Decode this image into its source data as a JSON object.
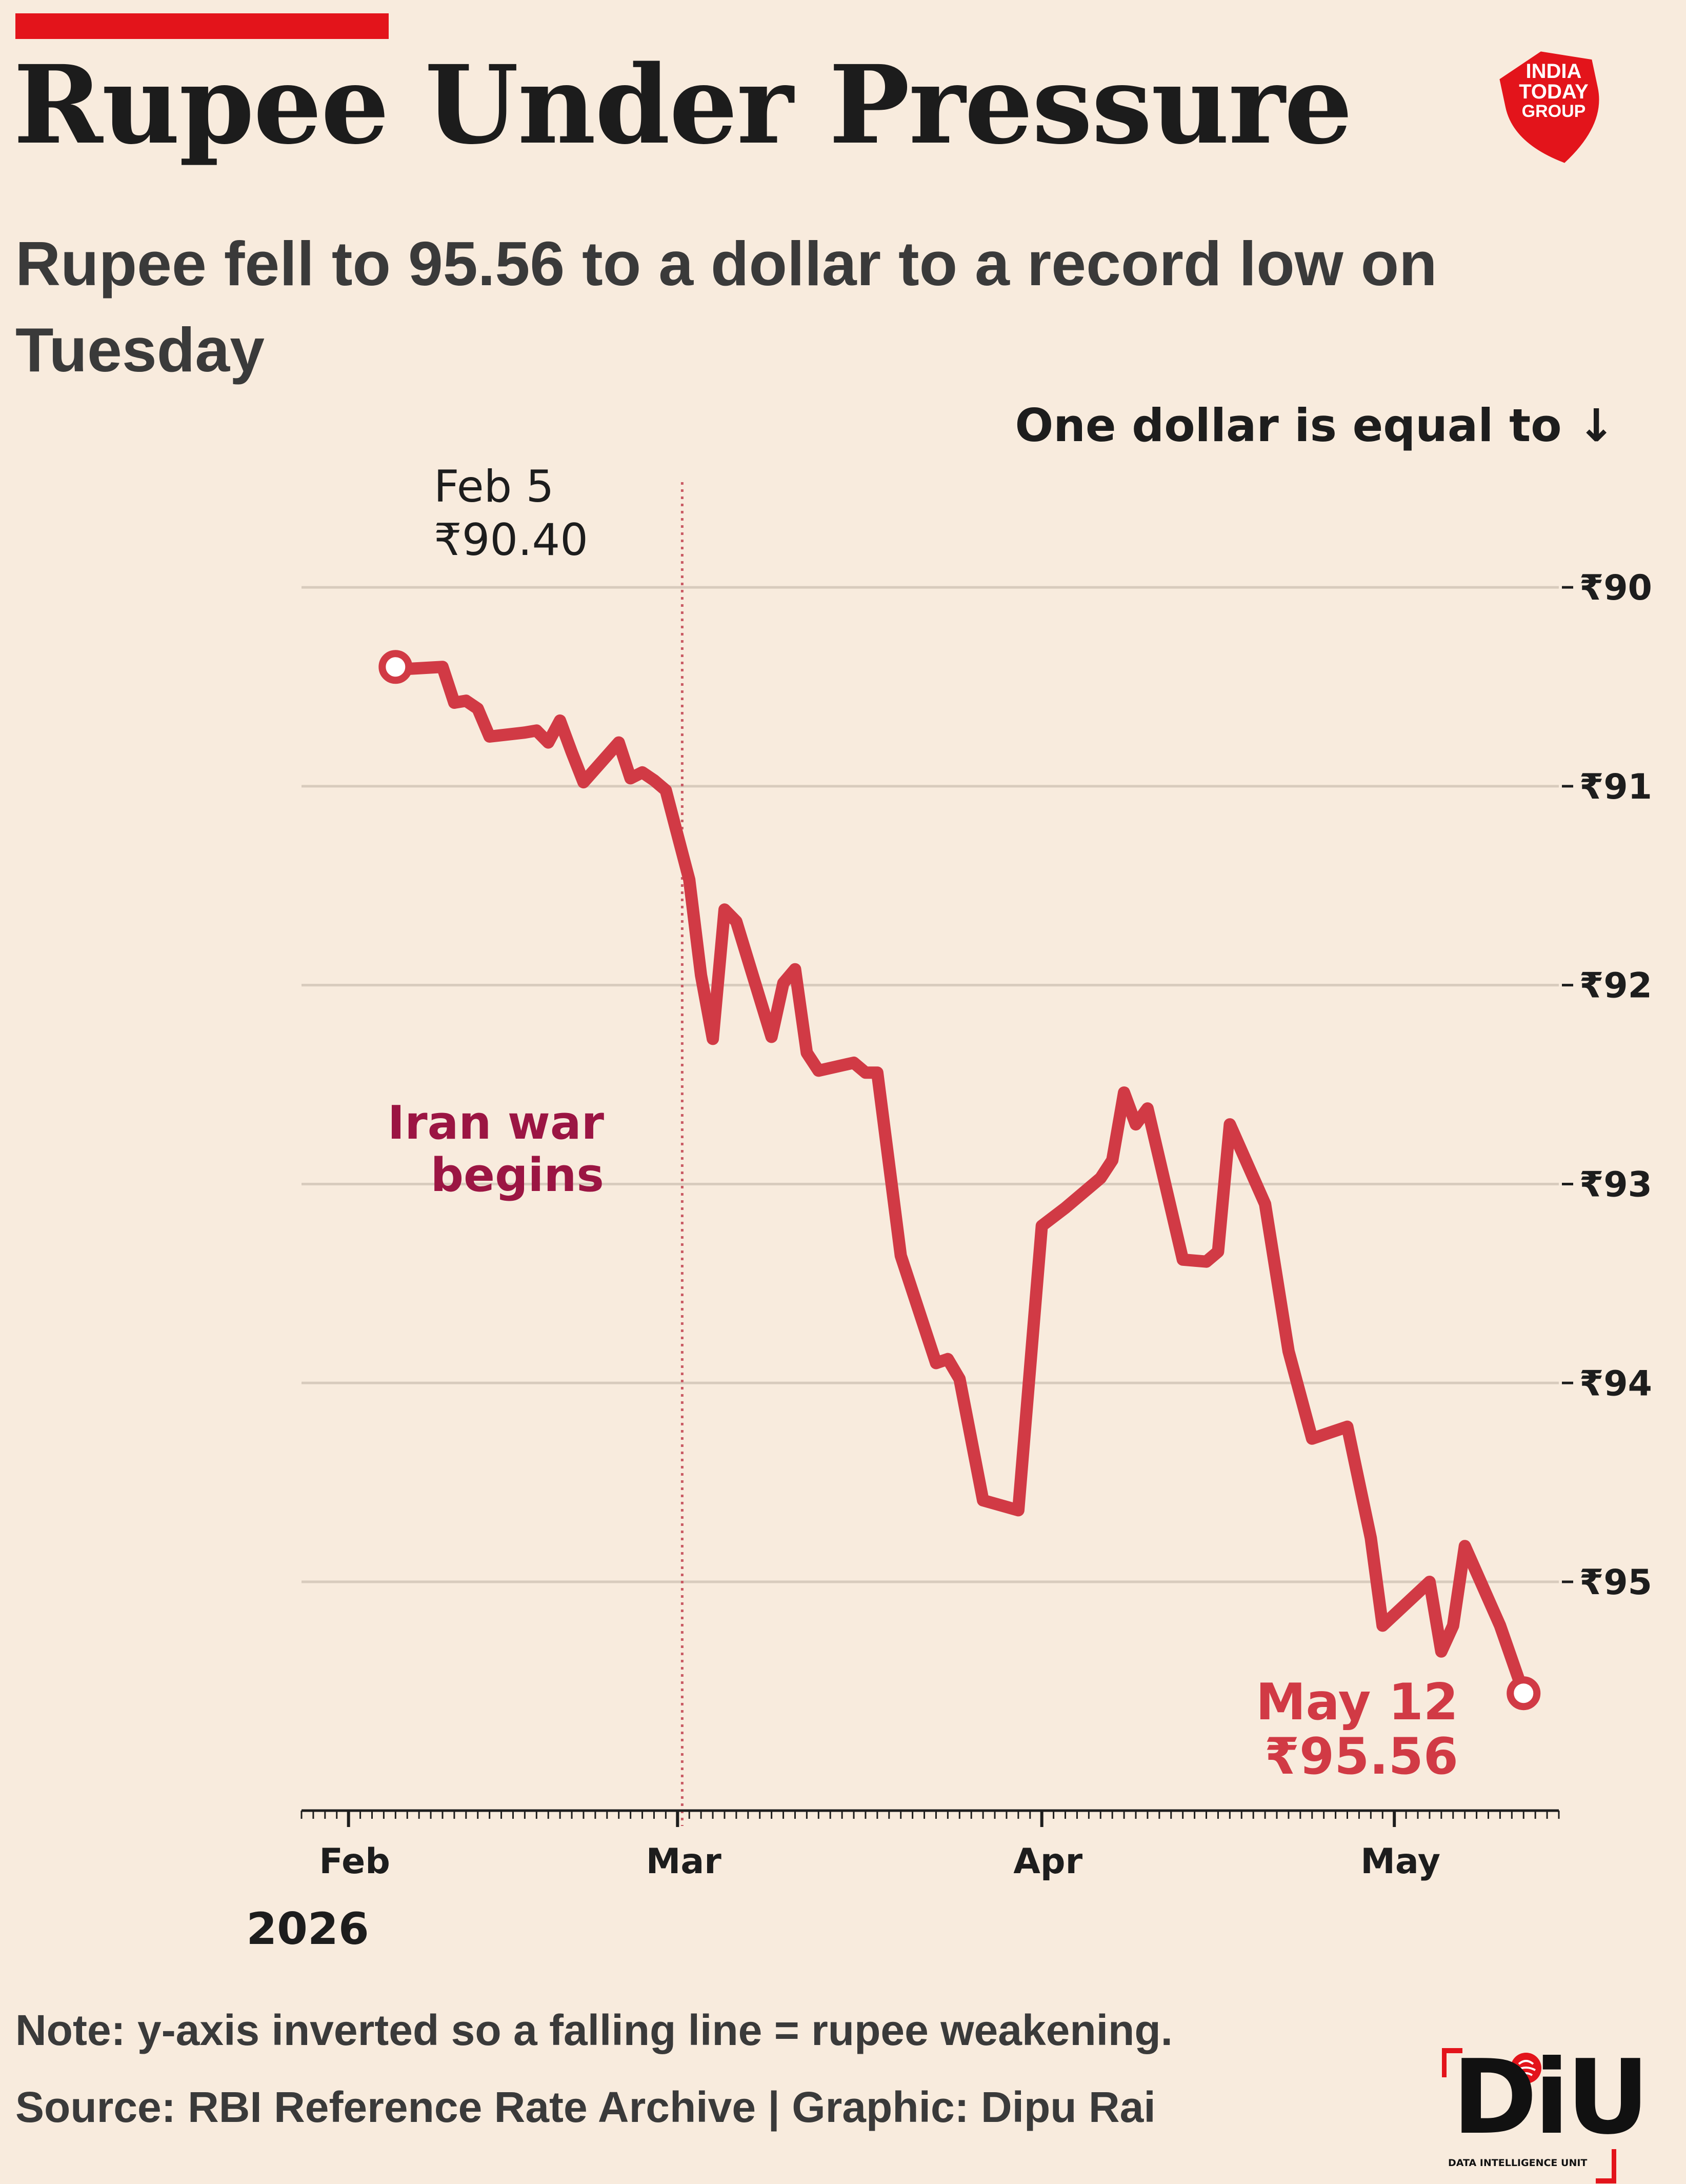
{
  "header": {
    "title": "Rupee Under Pressure",
    "subtitle": "Rupee fell to 95.56 to a dollar to a record low on Tuesday"
  },
  "logo": {
    "lines": [
      "INDIA",
      "TODAY",
      "GROUP"
    ],
    "icon": "india-today-group-logo",
    "color": "#e3141b"
  },
  "chart_data": {
    "type": "line",
    "xlabel": "",
    "ylabel": "One dollar is equal to ↓",
    "y_inverted": true,
    "y_ticks": [
      "₹90",
      "₹91",
      "₹92",
      "₹93",
      "₹94",
      "₹95"
    ],
    "y_tick_values": [
      90,
      91,
      92,
      93,
      94,
      95
    ],
    "ylim": [
      89.6,
      96.15
    ],
    "xlim": [
      "2026-01-28",
      "2026-05-15"
    ],
    "x_ticks": [
      "Feb",
      "Mar",
      "Apr",
      "May"
    ],
    "x_tick_dates": [
      "2026-02-01",
      "2026-03-01",
      "2026-04-01",
      "2026-05-01"
    ],
    "year_label": "2026",
    "grid": true,
    "line_color": "#d13a45",
    "series": [
      {
        "values": [
          [
            "2026-02-05",
            90.4
          ],
          [
            "2026-02-06",
            90.41
          ],
          [
            "2026-02-09",
            90.4
          ],
          [
            "2026-02-10",
            90.58
          ],
          [
            "2026-02-11",
            90.57
          ],
          [
            "2026-02-12",
            90.61
          ],
          [
            "2026-02-13",
            90.75
          ],
          [
            "2026-02-16",
            90.73
          ],
          [
            "2026-02-17",
            90.72
          ],
          [
            "2026-02-18",
            90.78
          ],
          [
            "2026-02-19",
            90.67
          ],
          [
            "2026-02-20",
            90.83
          ],
          [
            "2026-02-21",
            90.98
          ],
          [
            "2026-02-24",
            90.78
          ],
          [
            "2026-02-25",
            90.96
          ],
          [
            "2026-02-26",
            90.93
          ],
          [
            "2026-02-27",
            90.97
          ],
          [
            "2026-02-28",
            91.02
          ],
          [
            "2026-03-02",
            91.47
          ],
          [
            "2026-03-03",
            91.95
          ],
          [
            "2026-03-04",
            92.27
          ],
          [
            "2026-03-05",
            91.62
          ],
          [
            "2026-03-06",
            91.68
          ],
          [
            "2026-03-09",
            92.26
          ],
          [
            "2026-03-10",
            91.99
          ],
          [
            "2026-03-11",
            91.92
          ],
          [
            "2026-03-12",
            92.34
          ],
          [
            "2026-03-13",
            92.43
          ],
          [
            "2026-03-16",
            92.39
          ],
          [
            "2026-03-17",
            92.44
          ],
          [
            "2026-03-18",
            92.44
          ],
          [
            "2026-03-20",
            93.36
          ],
          [
            "2026-03-23",
            93.9
          ],
          [
            "2026-03-24",
            93.88
          ],
          [
            "2026-03-25",
            93.98
          ],
          [
            "2026-03-27",
            94.59
          ],
          [
            "2026-03-30",
            94.64
          ],
          [
            "2026-04-01",
            93.21
          ],
          [
            "2026-04-03",
            93.12
          ],
          [
            "2026-04-06",
            92.97
          ],
          [
            "2026-04-07",
            92.88
          ],
          [
            "2026-04-08",
            92.54
          ],
          [
            "2026-04-09",
            92.7
          ],
          [
            "2026-04-10",
            92.62
          ],
          [
            "2026-04-13",
            93.38
          ],
          [
            "2026-04-15",
            93.39
          ],
          [
            "2026-04-16",
            93.34
          ],
          [
            "2026-04-17",
            92.7
          ],
          [
            "2026-04-20",
            93.1
          ],
          [
            "2026-04-22",
            93.84
          ],
          [
            "2026-04-24",
            94.28
          ],
          [
            "2026-04-27",
            94.22
          ],
          [
            "2026-04-29",
            94.78
          ],
          [
            "2026-04-30",
            95.22
          ],
          [
            "2026-05-04",
            95.0
          ],
          [
            "2026-05-05",
            95.35
          ],
          [
            "2026-05-06",
            95.22
          ],
          [
            "2026-05-07",
            94.82
          ],
          [
            "2026-05-10",
            95.22
          ],
          [
            "2026-05-12",
            95.56
          ]
        ]
      }
    ],
    "annotations": {
      "start_date": "Feb 5",
      "start_value": "₹90.40",
      "event_label_line1": "Iran war",
      "event_label_line2": "begins",
      "event_date": "2026-02-28",
      "event_color": "#9b1543",
      "end_date": "May 12",
      "end_value": "₹95.56"
    }
  },
  "footer": {
    "note": "Note: y-axis inverted so a falling line = rupee weakening.",
    "source": "Source: RBI Reference Rate Archive | Graphic: Dipu Rai"
  },
  "brand": {
    "name": "DiU",
    "subtitle": "DATA INTELLIGENCE UNIT",
    "icon": "diu-logo",
    "accent": "#e3141b"
  }
}
